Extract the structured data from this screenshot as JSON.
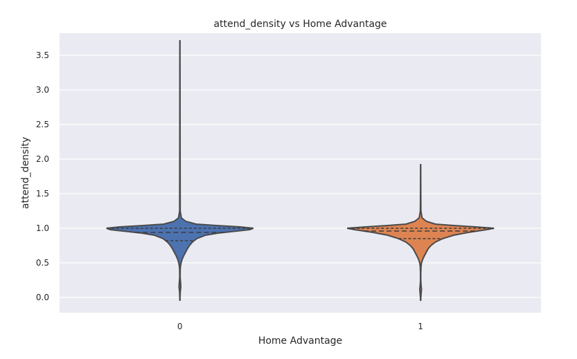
{
  "chart_data": {
    "type": "violin",
    "title": "attend_density vs Home Advantage",
    "xlabel": "Home Advantage",
    "ylabel": "attend_density",
    "categories": [
      "0",
      "1"
    ],
    "ylim": [
      -0.22,
      3.82
    ],
    "yticks": [
      0.0,
      0.5,
      1.0,
      1.5,
      2.0,
      2.5,
      3.0,
      3.5
    ],
    "ytick_labels": [
      "0.0",
      "0.5",
      "1.0",
      "1.5",
      "2.0",
      "2.5",
      "3.0",
      "3.5"
    ],
    "grid": true,
    "background": "#EAEAF2",
    "series": [
      {
        "category": "0",
        "color": "#4C72B0",
        "min": -0.05,
        "max": 3.72,
        "q1": 0.82,
        "median": 0.94,
        "q3": 1.0,
        "density": [
          [
            -0.05,
            0.0
          ],
          [
            0.08,
            0.005
          ],
          [
            0.15,
            0.012
          ],
          [
            0.2,
            0.01
          ],
          [
            0.25,
            0.006
          ],
          [
            0.3,
            0.003
          ],
          [
            0.4,
            0.004
          ],
          [
            0.45,
            0.008
          ],
          [
            0.5,
            0.016
          ],
          [
            0.55,
            0.03
          ],
          [
            0.6,
            0.05
          ],
          [
            0.65,
            0.075
          ],
          [
            0.7,
            0.1
          ],
          [
            0.75,
            0.13
          ],
          [
            0.8,
            0.17
          ],
          [
            0.85,
            0.23
          ],
          [
            0.9,
            0.35
          ],
          [
            0.93,
            0.52
          ],
          [
            0.96,
            0.78
          ],
          [
            0.98,
            0.95
          ],
          [
            1.0,
            1.0
          ],
          [
            1.02,
            0.82
          ],
          [
            1.04,
            0.5
          ],
          [
            1.06,
            0.22
          ],
          [
            1.1,
            0.08
          ],
          [
            1.15,
            0.02
          ],
          [
            1.25,
            0.004
          ],
          [
            3.72,
            0.0
          ]
        ]
      },
      {
        "category": "1",
        "color": "#DD8452",
        "min": -0.05,
        "max": 1.93,
        "q1": 0.85,
        "median": 0.96,
        "q3": 1.0,
        "density": [
          [
            -0.05,
            0.0
          ],
          [
            0.05,
            0.006
          ],
          [
            0.12,
            0.012
          ],
          [
            0.18,
            0.006
          ],
          [
            0.25,
            0.002
          ],
          [
            0.35,
            0.002
          ],
          [
            0.45,
            0.006
          ],
          [
            0.5,
            0.012
          ],
          [
            0.55,
            0.028
          ],
          [
            0.6,
            0.05
          ],
          [
            0.65,
            0.075
          ],
          [
            0.7,
            0.1
          ],
          [
            0.75,
            0.14
          ],
          [
            0.8,
            0.2
          ],
          [
            0.85,
            0.3
          ],
          [
            0.9,
            0.45
          ],
          [
            0.94,
            0.65
          ],
          [
            0.98,
            0.9
          ],
          [
            1.0,
            1.0
          ],
          [
            1.02,
            0.75
          ],
          [
            1.04,
            0.45
          ],
          [
            1.06,
            0.2
          ],
          [
            1.1,
            0.08
          ],
          [
            1.15,
            0.02
          ],
          [
            1.25,
            0.004
          ],
          [
            1.93,
            0.0
          ]
        ]
      }
    ]
  }
}
